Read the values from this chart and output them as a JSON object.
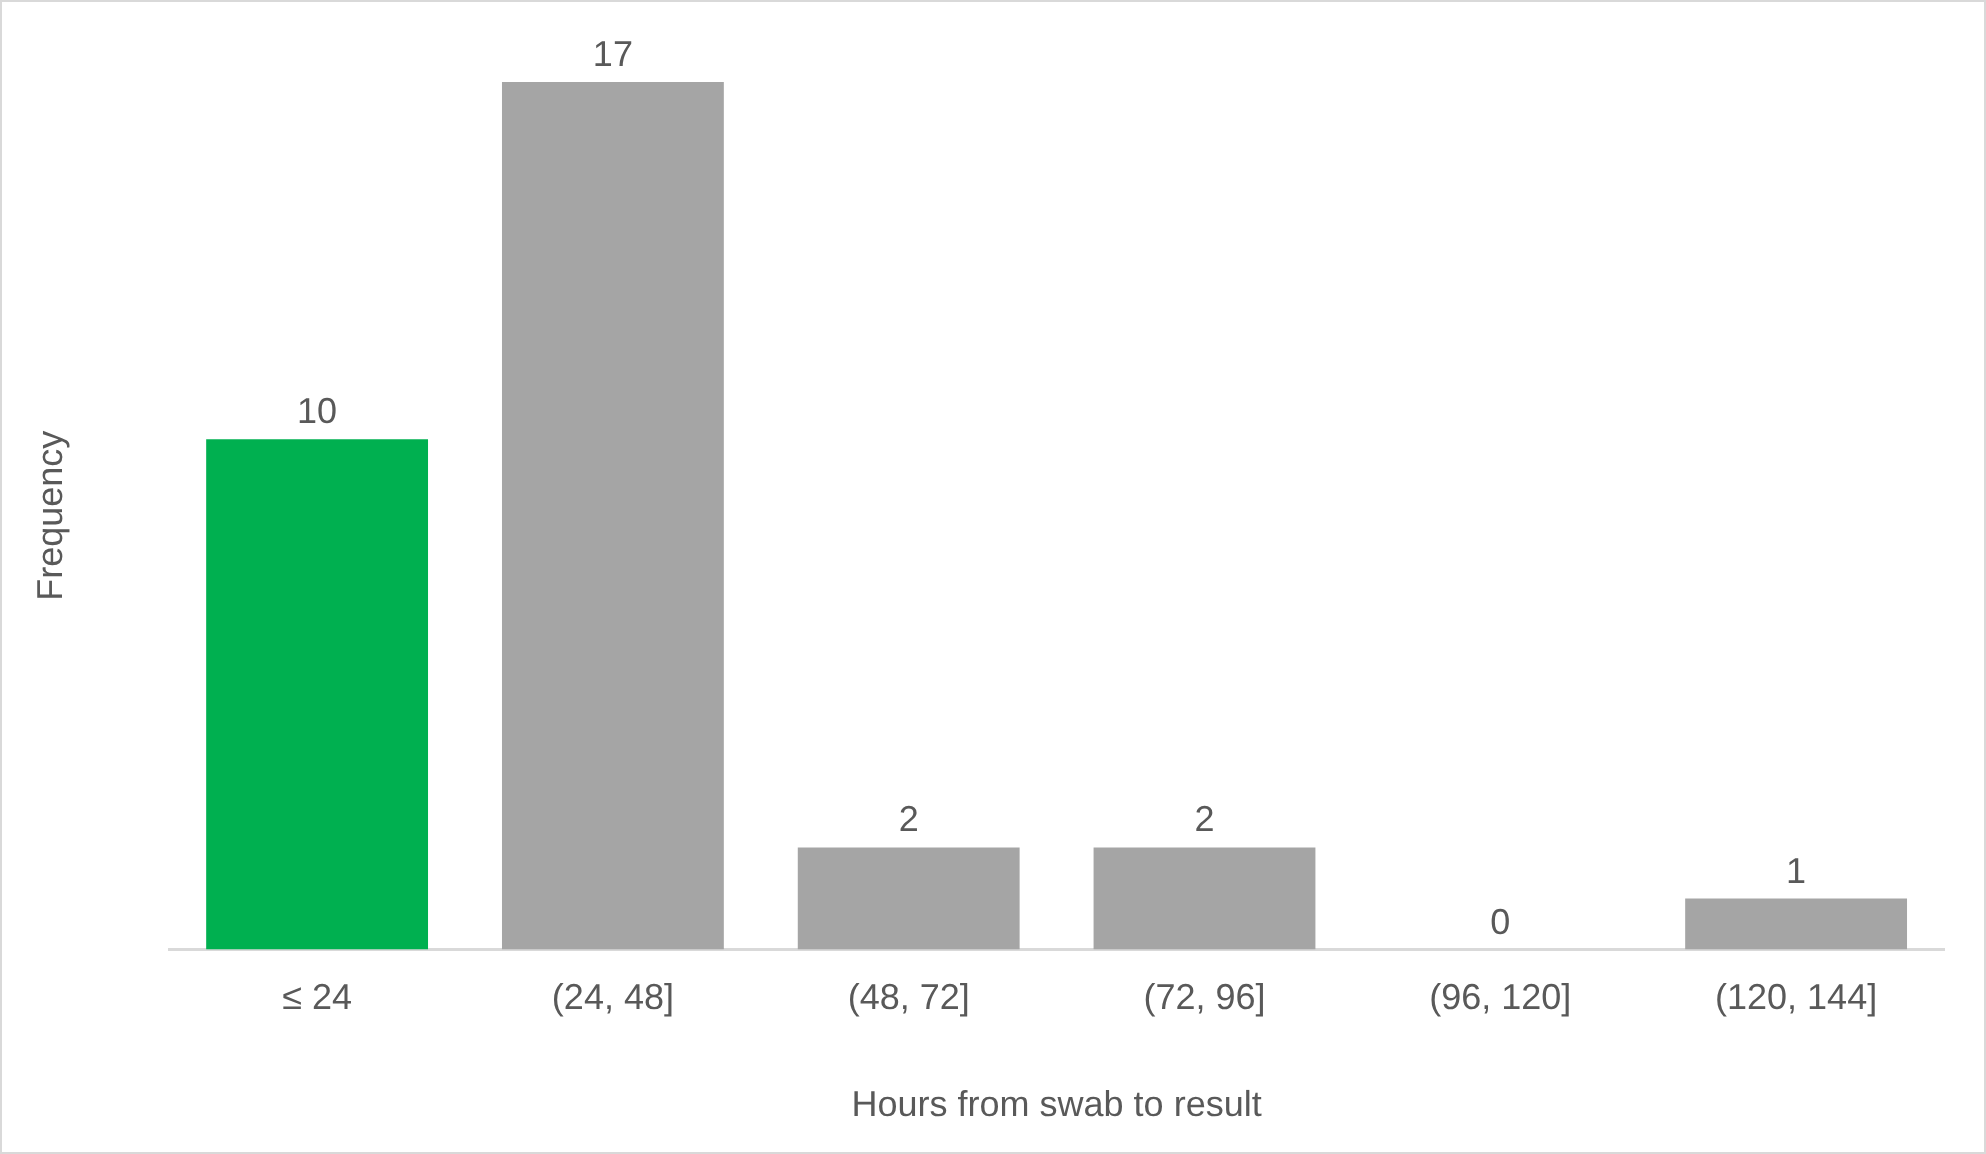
{
  "chart_data": {
    "type": "bar",
    "xlabel": "Hours from swab to result",
    "ylabel": "Frequency",
    "categories": [
      "≤ 24",
      "(24, 48]",
      "(48, 72]",
      "(72, 96]",
      "(96, 120]",
      "(120, 144]"
    ],
    "values": [
      10,
      17,
      2,
      2,
      0,
      1
    ],
    "colors": [
      "#00b050",
      "#a5a5a5",
      "#a5a5a5",
      "#a5a5a5",
      "#a5a5a5",
      "#a5a5a5"
    ],
    "data_labels": true,
    "grid": false,
    "legend": false
  }
}
